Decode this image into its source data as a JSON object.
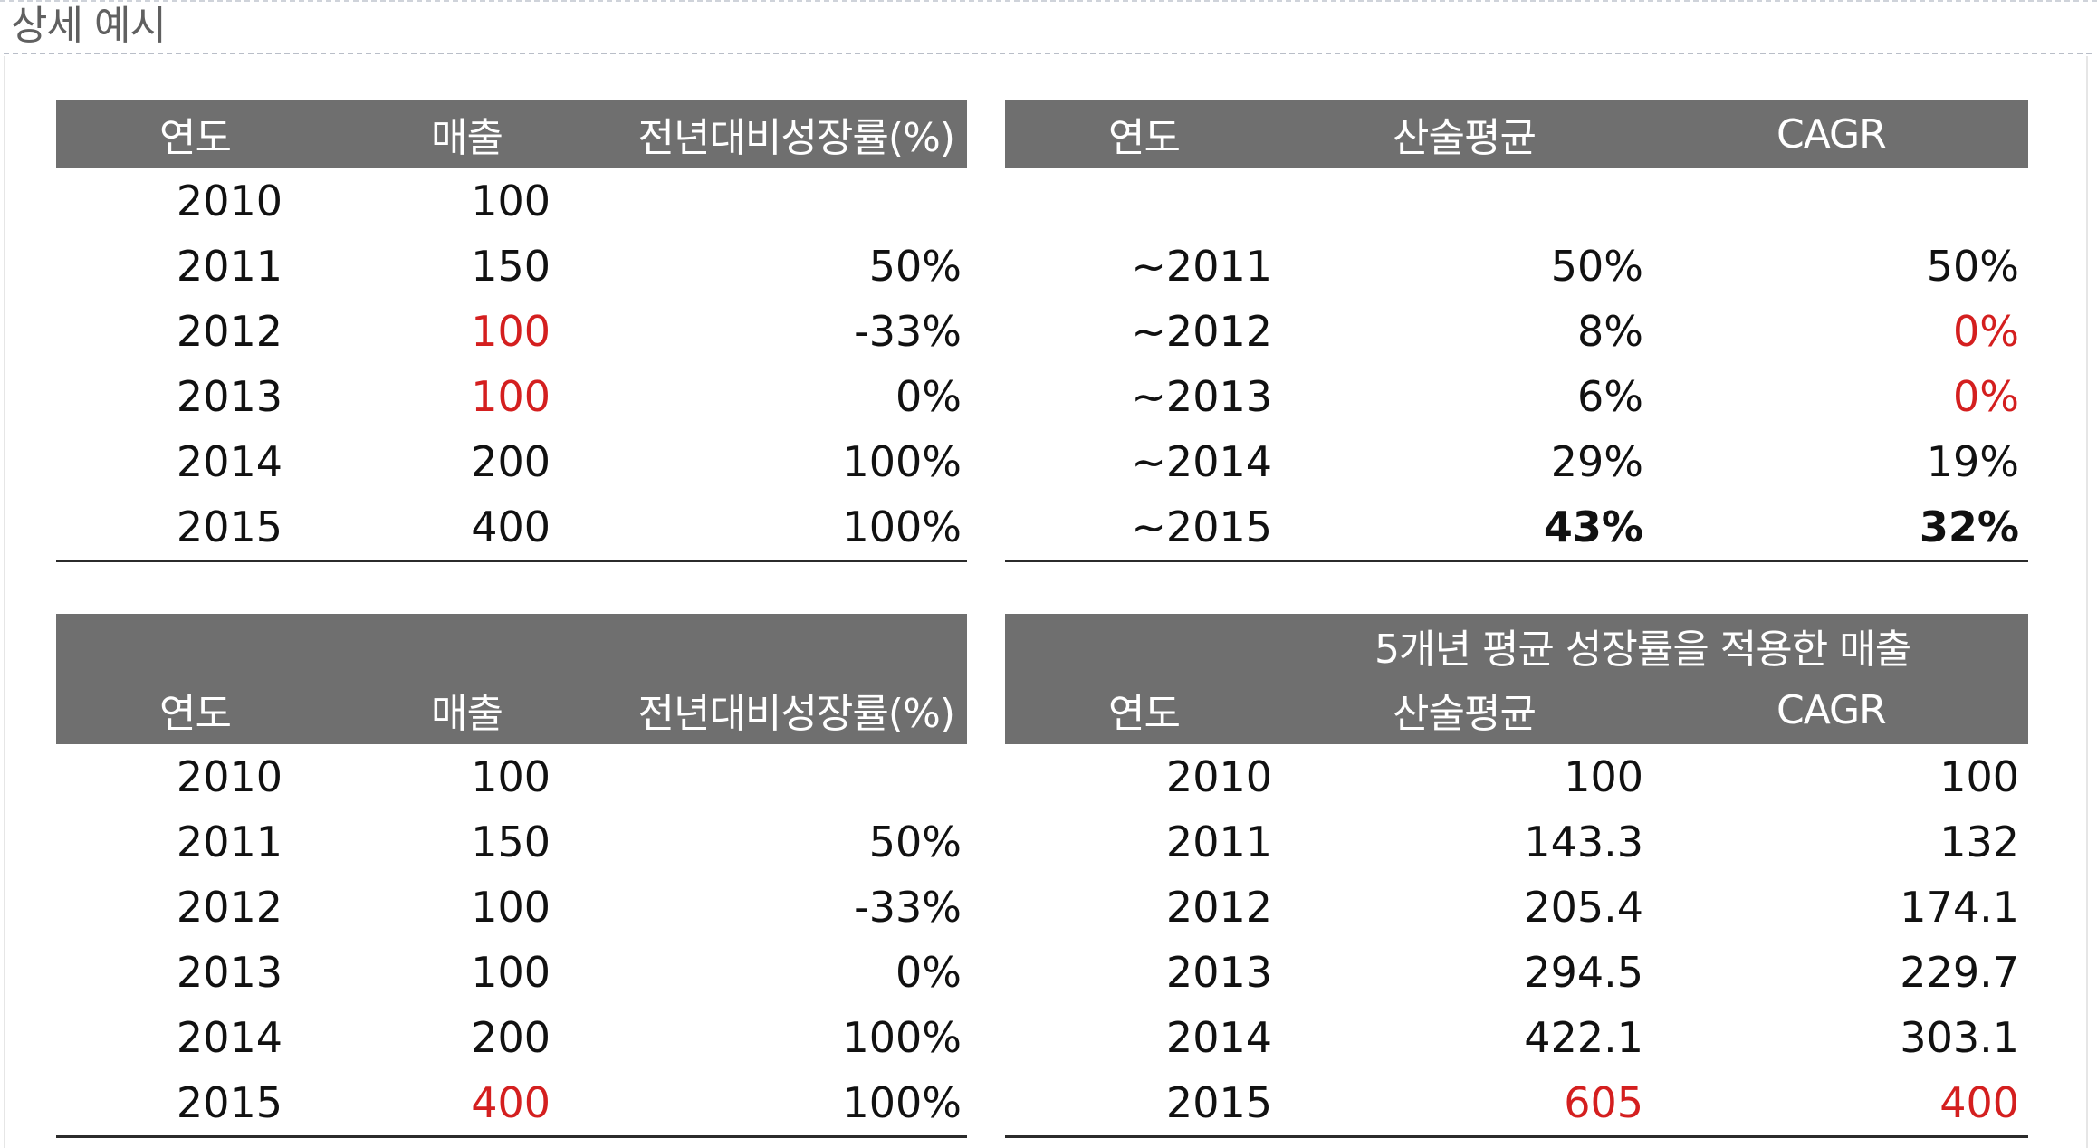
{
  "title": "상세 예시",
  "colors": {
    "header_bg": "#6f6f6f",
    "header_text": "#ffffff",
    "highlight": "#d41f1f",
    "rule": "#2b2b2b"
  },
  "t1": {
    "headers": [
      "연도",
      "매출",
      "전년대비성장률(%)"
    ],
    "rows": [
      [
        {
          "v": "2010"
        },
        {
          "v": "100"
        },
        {
          "v": ""
        }
      ],
      [
        {
          "v": "2011"
        },
        {
          "v": "150"
        },
        {
          "v": "50%"
        }
      ],
      [
        {
          "v": "2012"
        },
        {
          "v": "100",
          "red": true
        },
        {
          "v": "-33%"
        }
      ],
      [
        {
          "v": "2013"
        },
        {
          "v": "100",
          "red": true
        },
        {
          "v": "0%"
        }
      ],
      [
        {
          "v": "2014"
        },
        {
          "v": "200"
        },
        {
          "v": "100%"
        }
      ],
      [
        {
          "v": "2015"
        },
        {
          "v": "400"
        },
        {
          "v": "100%"
        }
      ]
    ]
  },
  "t2": {
    "headers": [
      "연도",
      "산술평균",
      "CAGR"
    ],
    "rows": [
      [
        {
          "v": ""
        },
        {
          "v": ""
        },
        {
          "v": ""
        }
      ],
      [
        {
          "v": "~2011"
        },
        {
          "v": "50%"
        },
        {
          "v": "50%"
        }
      ],
      [
        {
          "v": "~2012"
        },
        {
          "v": "8%"
        },
        {
          "v": "0%",
          "red": true
        }
      ],
      [
        {
          "v": "~2013"
        },
        {
          "v": "6%"
        },
        {
          "v": "0%",
          "red": true
        }
      ],
      [
        {
          "v": "~2014"
        },
        {
          "v": "29%"
        },
        {
          "v": "19%"
        }
      ],
      [
        {
          "v": "~2015"
        },
        {
          "v": "43%",
          "bold": true
        },
        {
          "v": "32%",
          "bold": true
        }
      ]
    ]
  },
  "t3": {
    "headers": [
      "연도",
      "매출",
      "전년대비성장률(%)"
    ],
    "rows": [
      [
        {
          "v": "2010"
        },
        {
          "v": "100"
        },
        {
          "v": ""
        }
      ],
      [
        {
          "v": "2011"
        },
        {
          "v": "150"
        },
        {
          "v": "50%"
        }
      ],
      [
        {
          "v": "2012"
        },
        {
          "v": "100"
        },
        {
          "v": "-33%"
        }
      ],
      [
        {
          "v": "2013"
        },
        {
          "v": "100"
        },
        {
          "v": "0%"
        }
      ],
      [
        {
          "v": "2014"
        },
        {
          "v": "200"
        },
        {
          "v": "100%"
        }
      ],
      [
        {
          "v": "2015"
        },
        {
          "v": "400",
          "red": true
        },
        {
          "v": "100%"
        }
      ]
    ]
  },
  "t4": {
    "caption": "5개년 평균 성장률을 적용한 매출",
    "headers": [
      "연도",
      "산술평균",
      "CAGR"
    ],
    "rows": [
      [
        {
          "v": "2010"
        },
        {
          "v": "100"
        },
        {
          "v": "100"
        }
      ],
      [
        {
          "v": "2011"
        },
        {
          "v": "143.3"
        },
        {
          "v": "132"
        }
      ],
      [
        {
          "v": "2012"
        },
        {
          "v": "205.4"
        },
        {
          "v": "174.1"
        }
      ],
      [
        {
          "v": "2013"
        },
        {
          "v": "294.5"
        },
        {
          "v": "229.7"
        }
      ],
      [
        {
          "v": "2014"
        },
        {
          "v": "422.1"
        },
        {
          "v": "303.1"
        }
      ],
      [
        {
          "v": "2015"
        },
        {
          "v": "605",
          "red": true
        },
        {
          "v": "400",
          "red": true
        }
      ]
    ]
  }
}
